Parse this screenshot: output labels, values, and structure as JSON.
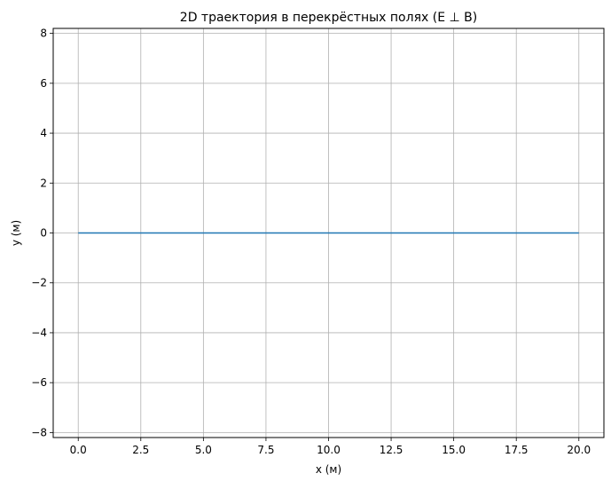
{
  "chart_data": {
    "type": "line",
    "title": "2D траектория в перекрёстных полях (E ⊥ B)",
    "xlabel": "x (м)",
    "ylabel": "y (м)",
    "xlim": [
      -1.0,
      21.0
    ],
    "ylim": [
      -8.2,
      8.2
    ],
    "xticks": [
      0.0,
      2.5,
      5.0,
      7.5,
      10.0,
      12.5,
      15.0,
      17.5,
      20.0
    ],
    "xtick_labels": [
      "0.0",
      "2.5",
      "5.0",
      "7.5",
      "10.0",
      "12.5",
      "15.0",
      "17.5",
      "20.0"
    ],
    "yticks": [
      -8,
      -6,
      -4,
      -2,
      0,
      2,
      4,
      6,
      8
    ],
    "ytick_labels": [
      "−8",
      "−6",
      "−4",
      "−2",
      "0",
      "2",
      "4",
      "6",
      "8"
    ],
    "grid": true,
    "series": [
      {
        "color": "#1f77b4",
        "x": [
          0.0,
          20.0
        ],
        "y": [
          0.0,
          0.0
        ]
      }
    ]
  }
}
